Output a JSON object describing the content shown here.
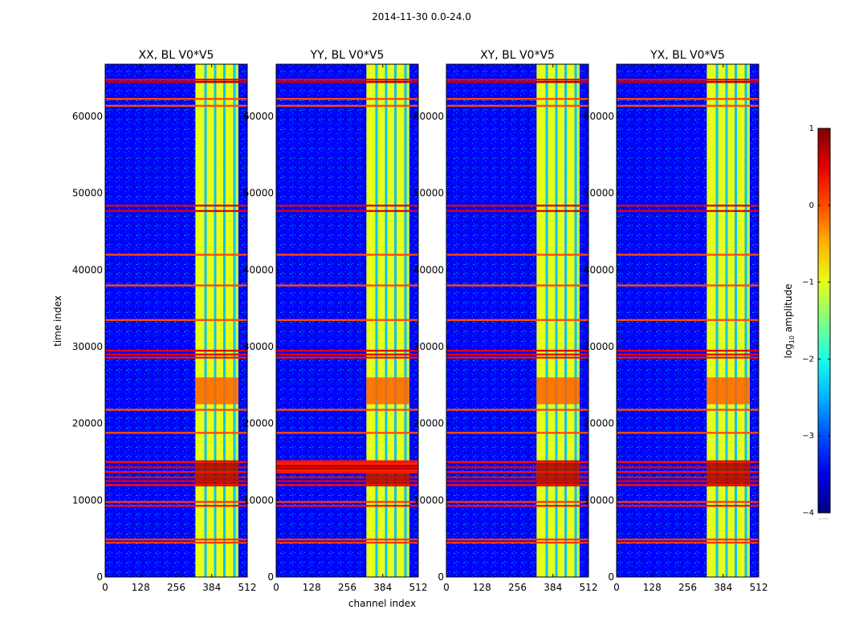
{
  "figure": {
    "suptitle": "2014-11-30 0.0-24.0"
  },
  "chart_data": {
    "type": "heatmap",
    "panels": [
      {
        "title": "XX, BL V0*V5",
        "yy_like": false
      },
      {
        "title": "YY, BL V0*V5",
        "yy_like": true
      },
      {
        "title": "XY, BL V0*V5",
        "yy_like": false
      },
      {
        "title": "YX, BL V0*V5",
        "yy_like": false
      }
    ],
    "xlabel": "channel index",
    "ylabel": "time index",
    "xlim": [
      0,
      512
    ],
    "ylim": [
      0,
      66800
    ],
    "xticks": [
      0,
      128,
      256,
      384,
      512
    ],
    "yticks": [
      0,
      10000,
      20000,
      30000,
      40000,
      50000,
      60000
    ],
    "colorbar": {
      "label_prefix": "log",
      "label_sub": "10",
      "label_suffix": " amplitude",
      "vmin": -4,
      "vmax": 1,
      "ticks": [
        -4,
        -3,
        -2,
        -1,
        0,
        1
      ],
      "tick_labels": [
        "−4",
        "−3",
        "−2",
        "−1",
        "0",
        "1"
      ],
      "colormap": "jet",
      "footer": "......"
    },
    "rfi_channel_band": [
      325,
      480
    ],
    "rfi_channel_stripes": [
      [
        325,
        358,
        -1.0
      ],
      [
        358,
        366,
        -2.4
      ],
      [
        366,
        392,
        -1.0
      ],
      [
        392,
        400,
        -2.4
      ],
      [
        400,
        426,
        -1.0
      ],
      [
        426,
        434,
        -2.4
      ],
      [
        434,
        462,
        -1.0
      ],
      [
        462,
        470,
        -2.4
      ],
      [
        470,
        480,
        -1.2
      ]
    ],
    "rfi_time_lines": [
      [
        64500,
        1.0
      ],
      [
        64800,
        0.7
      ],
      [
        62300,
        0.3
      ],
      [
        61400,
        0.3
      ],
      [
        48400,
        0.8
      ],
      [
        47700,
        0.8
      ],
      [
        42000,
        0.3
      ],
      [
        38000,
        0.3
      ],
      [
        33500,
        0.3
      ],
      [
        29500,
        0.8
      ],
      [
        29000,
        0.8
      ],
      [
        28600,
        0.6
      ],
      [
        21800,
        0.3
      ],
      [
        18800,
        0.3
      ],
      [
        15000,
        0.6
      ],
      [
        14300,
        0.8
      ],
      [
        13700,
        0.6
      ],
      [
        13000,
        0.8
      ],
      [
        12500,
        0.8
      ],
      [
        12000,
        0.6
      ],
      [
        9800,
        0.4
      ],
      [
        9300,
        0.6
      ],
      [
        4900,
        0.4
      ],
      [
        4500,
        0.4
      ]
    ],
    "bright_time_bands": [
      [
        11800,
        15200,
        0.95
      ],
      [
        22500,
        26000,
        -0.1
      ]
    ]
  }
}
